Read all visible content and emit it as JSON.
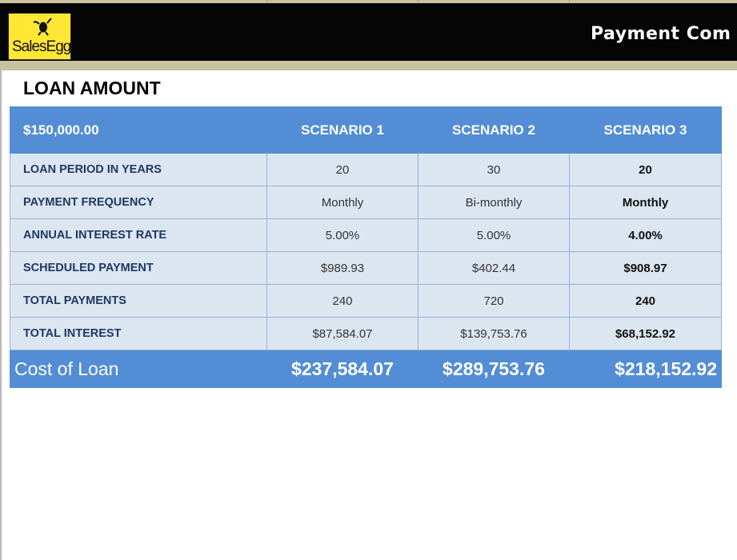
{
  "header": {
    "logo_text": "SalesEgg",
    "title": "Payment Com"
  },
  "section": {
    "title": "LOAN AMOUNT"
  },
  "table": {
    "loan_amount": "$150,000.00",
    "scenarios": [
      "SCENARIO 1",
      "SCENARIO 2",
      "SCENARIO 3"
    ],
    "rows": [
      {
        "label": "LOAN PERIOD IN YEARS",
        "values": [
          "20",
          "30",
          "20"
        ]
      },
      {
        "label": "PAYMENT FREQUENCY",
        "values": [
          "Monthly",
          "Bi-monthly",
          "Monthly"
        ]
      },
      {
        "label": "ANNUAL INTEREST RATE",
        "values": [
          "5.00%",
          "5.00%",
          "4.00%"
        ]
      },
      {
        "label": "SCHEDULED PAYMENT",
        "values": [
          "$989.93",
          "$402.44",
          "$908.97"
        ]
      },
      {
        "label": "TOTAL PAYMENTS",
        "values": [
          "240",
          "720",
          "240"
        ]
      },
      {
        "label": "TOTAL INTEREST",
        "values": [
          "$87,584.07",
          "$139,753.76",
          "$68,152.92"
        ]
      }
    ],
    "total": {
      "label": "Cost of Loan",
      "values": [
        "$237,584.07",
        "$289,753.76",
        "$218,152.92"
      ]
    }
  },
  "colors": {
    "header_background": "#050505",
    "accent_blue": "#538dd5",
    "row_background": "#dce6f1",
    "logo_yellow": "#ffe733"
  }
}
